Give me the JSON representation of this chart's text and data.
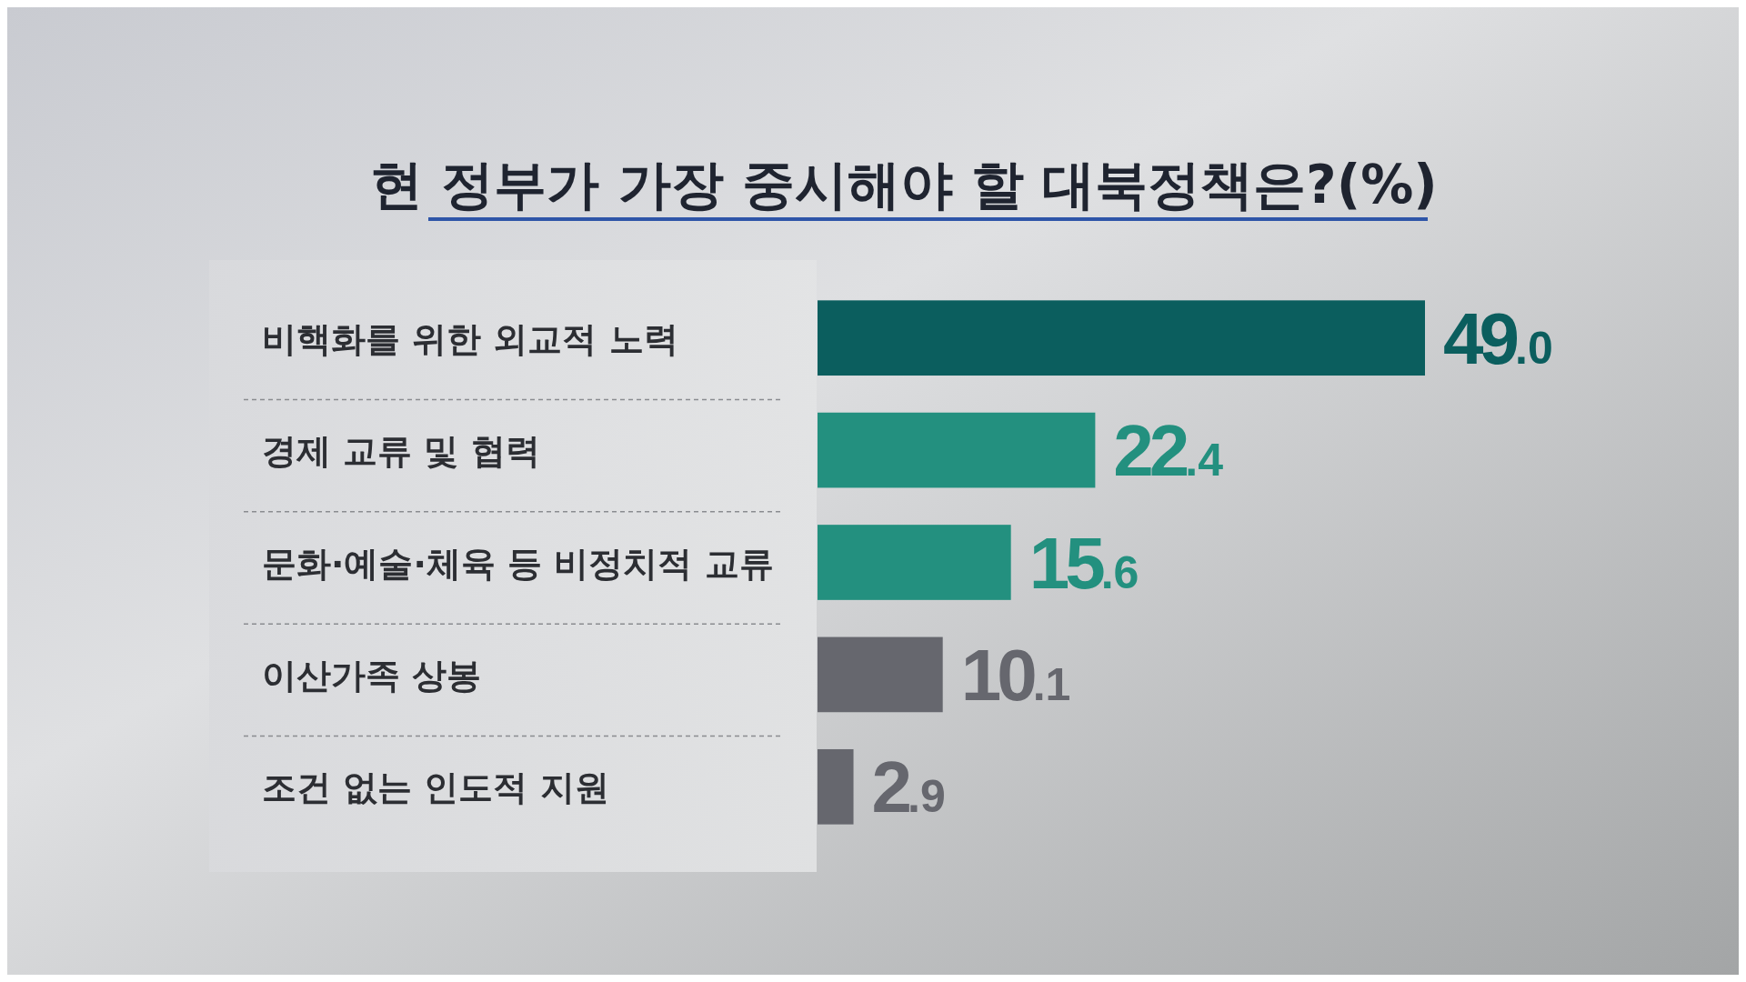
{
  "chart_data": {
    "type": "bar",
    "orientation": "horizontal",
    "title": "현 정부가 가장 중시해야 할 대북정책은?(%)",
    "categories": [
      "비핵화를 위한 외교적 노력",
      "경제 교류 및 협력",
      "문화·예술·체육 등 비정치적 교류",
      "이산가족 상봉",
      "조건 없는 인도적 지원"
    ],
    "values": [
      49.0,
      22.4,
      15.6,
      10.1,
      2.9
    ],
    "colors": [
      "#0b5e5e",
      "#23907f",
      "#23907f",
      "#66676e",
      "#66676e"
    ],
    "value_labels": [
      "49.0",
      "22.4",
      "15.6",
      "10.1",
      "2.9"
    ]
  }
}
